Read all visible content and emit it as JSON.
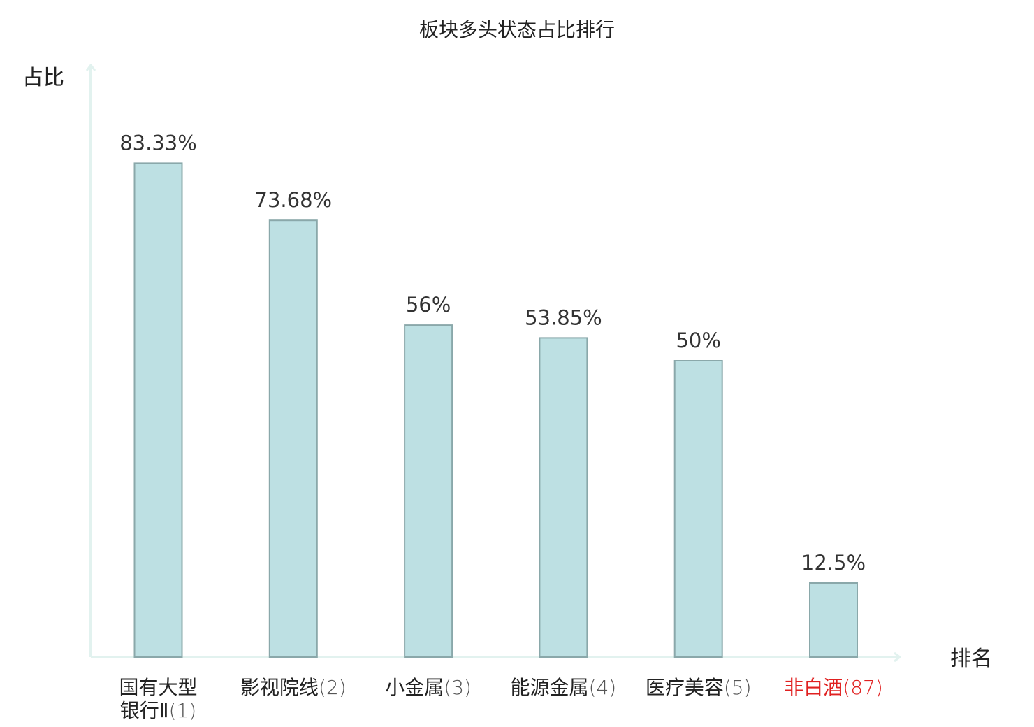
{
  "chart_data": {
    "type": "bar",
    "title": "板块多头状态占比排行",
    "ylabel": "占比",
    "xlabel": "排名",
    "ylim": [
      0,
      100
    ],
    "grid": false,
    "legend": "none",
    "categories": [
      {
        "name": "国有大型银行Ⅱ",
        "line1": "国有大型",
        "line2": "银行Ⅱ",
        "rank": "(1)",
        "highlight": false
      },
      {
        "name": "影视院线",
        "line1": "影视院线",
        "line2": "",
        "rank": "(2)",
        "highlight": false
      },
      {
        "name": "小金属",
        "line1": "小金属",
        "line2": "",
        "rank": "(3)",
        "highlight": false
      },
      {
        "name": "能源金属",
        "line1": "能源金属",
        "line2": "",
        "rank": "(4)",
        "highlight": false
      },
      {
        "name": "医疗美容",
        "line1": "医疗美容",
        "line2": "",
        "rank": "(5)",
        "highlight": false
      },
      {
        "name": "非白酒",
        "line1": "非白酒",
        "line2": "",
        "rank": "(87)",
        "highlight": true
      }
    ],
    "values": [
      83.33,
      73.68,
      56,
      53.85,
      50,
      12.5
    ],
    "value_labels": [
      "83.33%",
      "73.68%",
      "56%",
      "53.85%",
      "50%",
      "12.5%"
    ],
    "colors": {
      "bar_fill": "#bde0e3",
      "bar_stroke": "#8aa8aa",
      "axis": "#e2f2ef",
      "highlight": "#e02020"
    }
  }
}
